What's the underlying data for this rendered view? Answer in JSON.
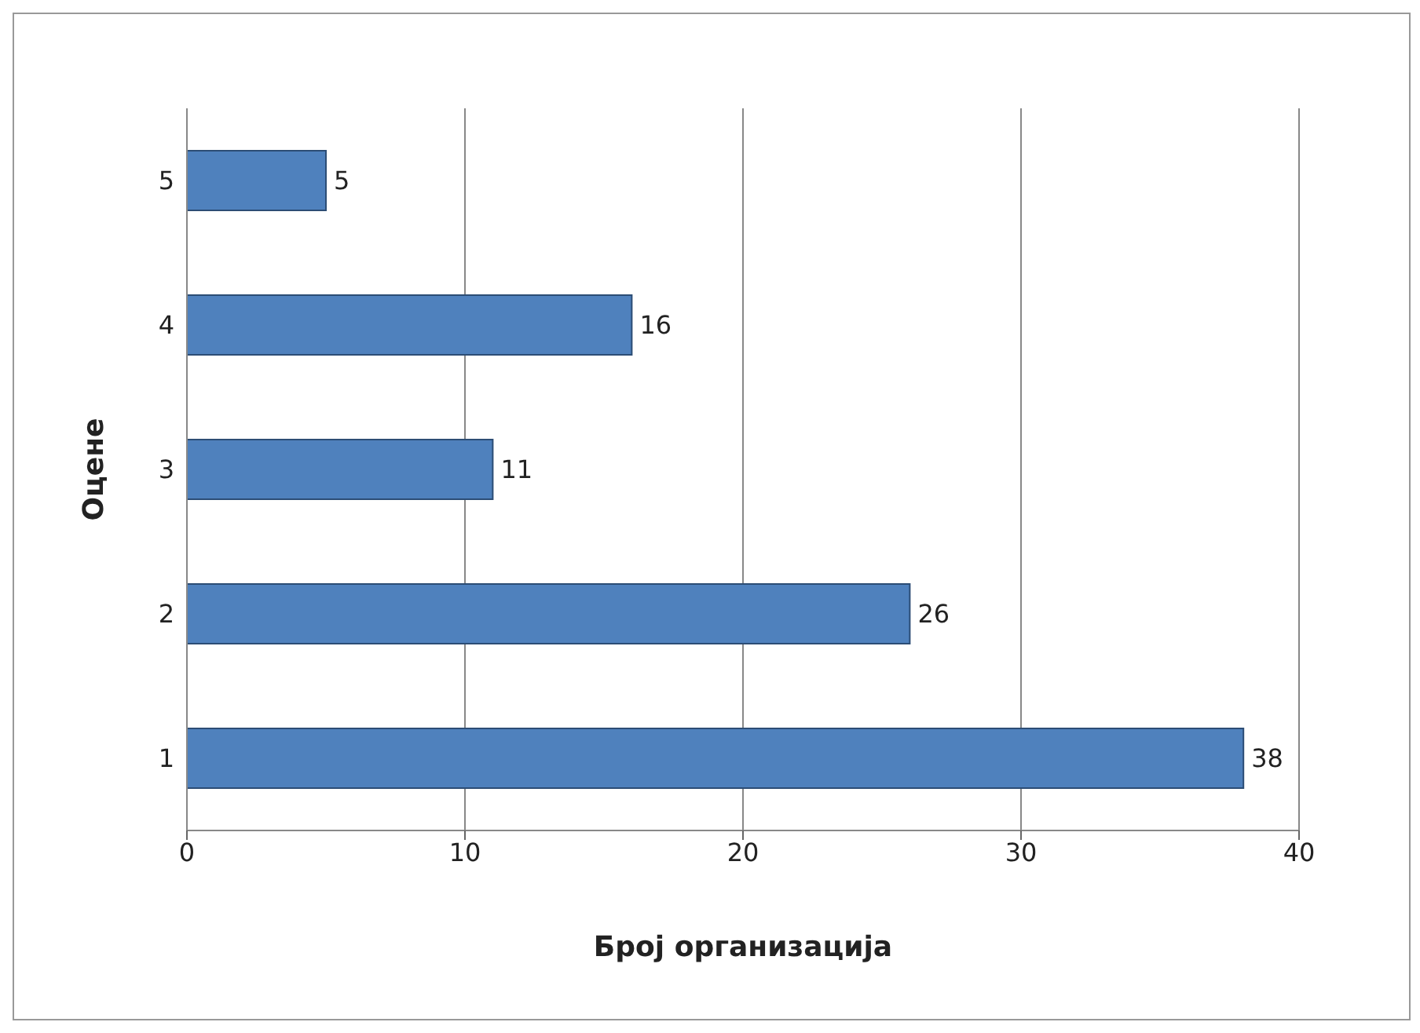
{
  "chart_data": {
    "type": "bar",
    "orientation": "horizontal",
    "categories": [
      "5",
      "4",
      "3",
      "2",
      "1"
    ],
    "values": [
      5,
      16,
      11,
      26,
      38
    ],
    "color": "#4f81bd",
    "xlim": [
      0,
      40
    ],
    "xticks": [
      0,
      10,
      20,
      30,
      40
    ],
    "grid": "x",
    "data_labels": true,
    "xlabel": "Број организација",
    "ylabel": "Оцене"
  }
}
